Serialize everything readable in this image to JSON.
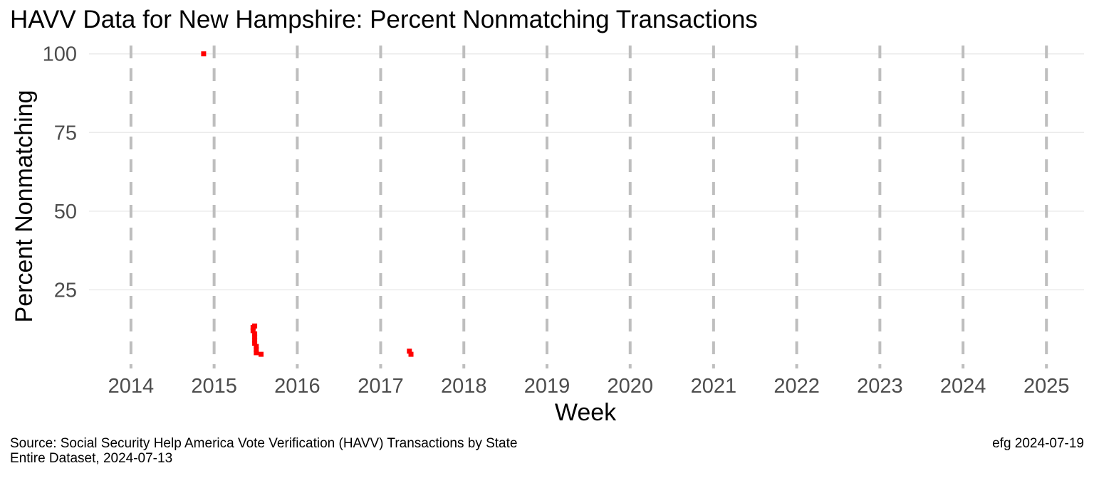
{
  "title": "HAVV Data for New Hampshire:  Percent Nonmatching Transactions",
  "caption": {
    "source_line1": "Source:  Social Security Help America Vote Verification (HAVV) Transactions by State",
    "source_line2": "Entire Dataset, 2024-07-13",
    "credit": "efg 2024-07-19"
  },
  "colors": {
    "points": "#ff0000",
    "year_lines": "#bebebe",
    "grid": "#ebebeb",
    "tick_text": "#4d4d4d"
  },
  "chart_data": {
    "type": "scatter",
    "title": "HAVV Data for New Hampshire:  Percent Nonmatching Transactions",
    "xlabel": "Week",
    "ylabel": "Percent Nonmatching",
    "x_ticks": [
      "2014",
      "2015",
      "2016",
      "2017",
      "2018",
      "2019",
      "2020",
      "2021",
      "2022",
      "2023",
      "2024",
      "2025"
    ],
    "y_ticks": [
      25,
      50,
      75,
      100
    ],
    "xlim": [
      "2013-07-01",
      "2025-06-15"
    ],
    "ylim": [
      0,
      104
    ],
    "grid": true,
    "year_marker_lines": "dashed vertical line at each January 1",
    "legend": "none",
    "points": [
      {
        "x": "2014-11-16",
        "y": 100
      },
      {
        "x": "2015-06-21",
        "y": 13
      },
      {
        "x": "2015-06-21",
        "y": 12
      },
      {
        "x": "2015-06-28",
        "y": 13.5
      },
      {
        "x": "2015-06-28",
        "y": 11
      },
      {
        "x": "2015-06-28",
        "y": 10
      },
      {
        "x": "2015-06-28",
        "y": 9
      },
      {
        "x": "2015-06-28",
        "y": 8
      },
      {
        "x": "2015-07-05",
        "y": 7
      },
      {
        "x": "2015-07-05",
        "y": 6
      },
      {
        "x": "2015-07-05",
        "y": 5
      },
      {
        "x": "2015-07-26",
        "y": 4.5
      },
      {
        "x": "2017-05-07",
        "y": 5.5
      },
      {
        "x": "2017-05-14",
        "y": 4.5
      }
    ]
  }
}
